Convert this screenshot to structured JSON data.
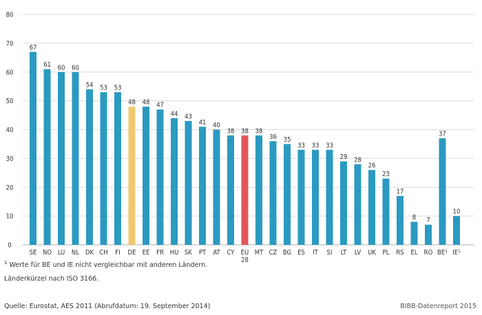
{
  "chart_data": {
    "type": "bar",
    "title": "",
    "xlabel": "",
    "ylabel": "",
    "ylim": [
      0,
      80
    ],
    "yticks": [
      0,
      10,
      20,
      30,
      40,
      50,
      60,
      70,
      80
    ],
    "grid": true,
    "colors": {
      "default": "#2b9ac1",
      "DE": "#f0c872",
      "EU": "#e15759"
    },
    "categories": [
      {
        "label": "SE",
        "sup": ""
      },
      {
        "label": "NO",
        "sup": ""
      },
      {
        "label": "LU",
        "sup": ""
      },
      {
        "label": "NL",
        "sup": ""
      },
      {
        "label": "DK",
        "sup": ""
      },
      {
        "label": "CH",
        "sup": ""
      },
      {
        "label": "FI",
        "sup": ""
      },
      {
        "label": "DE",
        "sup": ""
      },
      {
        "label": "EE",
        "sup": ""
      },
      {
        "label": "FR",
        "sup": ""
      },
      {
        "label": "HU",
        "sup": ""
      },
      {
        "label": "SK",
        "sup": ""
      },
      {
        "label": "PT",
        "sup": ""
      },
      {
        "label": "AT",
        "sup": ""
      },
      {
        "label": "CY",
        "sup": ""
      },
      {
        "label": "EU",
        "sup": "",
        "line2": "28"
      },
      {
        "label": "MT",
        "sup": ""
      },
      {
        "label": "CZ",
        "sup": ""
      },
      {
        "label": "BG",
        "sup": ""
      },
      {
        "label": "ES",
        "sup": ""
      },
      {
        "label": "IT",
        "sup": ""
      },
      {
        "label": "SI",
        "sup": ""
      },
      {
        "label": "LT",
        "sup": ""
      },
      {
        "label": "LV",
        "sup": ""
      },
      {
        "label": "UK",
        "sup": ""
      },
      {
        "label": "PL",
        "sup": ""
      },
      {
        "label": "RS",
        "sup": ""
      },
      {
        "label": "EL",
        "sup": ""
      },
      {
        "label": "RO",
        "sup": ""
      },
      {
        "label": "BE",
        "sup": "1"
      },
      {
        "label": "IE",
        "sup": "1"
      }
    ],
    "values": [
      67,
      61,
      60,
      60,
      54,
      53,
      53,
      48,
      48,
      47,
      44,
      43,
      41,
      40,
      38,
      38,
      38,
      36,
      35,
      33,
      33,
      33,
      29,
      28,
      26,
      23,
      17,
      8,
      7,
      37,
      10
    ]
  },
  "notes": {
    "footnote_mark": "1",
    "footnote": " Werte für BE und IE nicht vergleichbar mit anderen Ländern.",
    "abbreviations": "Länderkürzel nach ISO 3166.",
    "source": "Quelle: Eurostat, AES 2011 (Abrufdatum: 19. September 2014)"
  },
  "credit": "BIBB-Datenreport 2015"
}
